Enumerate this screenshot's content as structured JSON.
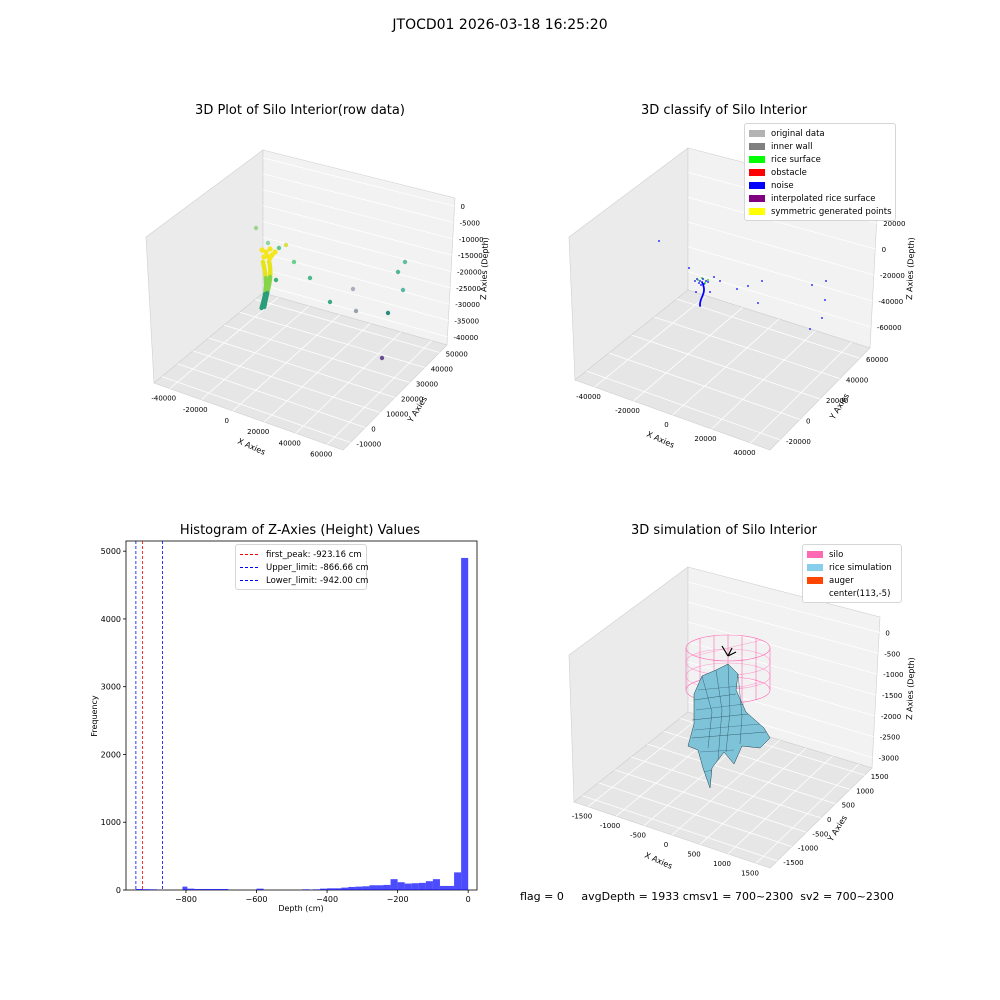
{
  "suptitle": "JTOCD01 2026-03-18 16:25:20",
  "footer": {
    "flag": "flag = 0",
    "avg": "avgDepth = 1933 cm",
    "sv1": "sv1 = 700~2300",
    "sv2": "sv2 = 700~2300"
  },
  "chart_data": [
    {
      "type": "scatter3d",
      "title": "3D Plot of Silo Interior(row data)",
      "xlabel": "X Axies",
      "ylabel": "Y Axies",
      "zlabel": "Z Axies (Depth)",
      "x_ticks": [
        "-40000",
        "-20000",
        "0",
        "20000",
        "40000",
        "60000"
      ],
      "y_ticks": [
        "-10000",
        "0",
        "10000",
        "20000",
        "30000",
        "40000",
        "50000"
      ],
      "z_ticks": [
        "0",
        "-5000",
        "-10000",
        "-15000",
        "-20000",
        "-25000",
        "-30000",
        "-35000",
        "-40000"
      ],
      "colormap": "viridis"
    },
    {
      "type": "scatter3d",
      "title": "3D classify of Silo Interior",
      "xlabel": "X Axies",
      "ylabel": "Y Axies",
      "zlabel": "Z Axies (Depth)",
      "x_ticks": [
        "-40000",
        "-20000",
        "0",
        "20000",
        "40000"
      ],
      "y_ticks": [
        "-20000",
        "0",
        "20000",
        "40000",
        "60000"
      ],
      "z_ticks": [
        "20000",
        "0",
        "-20000",
        "-40000",
        "-60000"
      ],
      "legend": [
        {
          "label": "original data",
          "color": "#b3b3b3"
        },
        {
          "label": "inner wall",
          "color": "#808080"
        },
        {
          "label": "rice surface",
          "color": "#00ff00"
        },
        {
          "label": "obstacle",
          "color": "#ff0000"
        },
        {
          "label": "noise",
          "color": "#0000ff"
        },
        {
          "label": "interpolated rice surface",
          "color": "#800080"
        },
        {
          "label": "symmetric generated points",
          "color": "#ffff00"
        }
      ]
    },
    {
      "type": "bar",
      "title": "Histogram of Z-Axies (Height) Values",
      "xlabel": "Depth (cm)",
      "ylabel": "Frequency",
      "xlim": [
        -970,
        25
      ],
      "ylim": [
        0,
        5150
      ],
      "x_ticks": [
        -800,
        -600,
        -400,
        -200,
        0
      ],
      "y_ticks": [
        0,
        1000,
        2000,
        3000,
        4000,
        5000
      ],
      "bar_color": "#0000ff",
      "bins": [
        {
          "x0": -942,
          "x1": -922,
          "y": 15
        },
        {
          "x0": -922,
          "x1": -902,
          "y": 12
        },
        {
          "x0": -902,
          "x1": -882,
          "y": 10
        },
        {
          "x0": -810,
          "x1": -796,
          "y": 50
        },
        {
          "x0": -796,
          "x1": -776,
          "y": 20
        },
        {
          "x0": -776,
          "x1": -756,
          "y": 15
        },
        {
          "x0": -756,
          "x1": -680,
          "y": 15
        },
        {
          "x0": -600,
          "x1": -580,
          "y": 20
        },
        {
          "x0": -470,
          "x1": -450,
          "y": 10
        },
        {
          "x0": -440,
          "x1": -420,
          "y": 10
        },
        {
          "x0": -420,
          "x1": -400,
          "y": 20
        },
        {
          "x0": -400,
          "x1": -380,
          "y": 25
        },
        {
          "x0": -380,
          "x1": -360,
          "y": 25
        },
        {
          "x0": -360,
          "x1": -340,
          "y": 35
        },
        {
          "x0": -340,
          "x1": -320,
          "y": 45
        },
        {
          "x0": -320,
          "x1": -300,
          "y": 50
        },
        {
          "x0": -300,
          "x1": -280,
          "y": 55
        },
        {
          "x0": -280,
          "x1": -260,
          "y": 70
        },
        {
          "x0": -260,
          "x1": -240,
          "y": 70
        },
        {
          "x0": -240,
          "x1": -220,
          "y": 75
        },
        {
          "x0": -220,
          "x1": -200,
          "y": 160
        },
        {
          "x0": -200,
          "x1": -180,
          "y": 115
        },
        {
          "x0": -180,
          "x1": -160,
          "y": 95
        },
        {
          "x0": -160,
          "x1": -140,
          "y": 100
        },
        {
          "x0": -140,
          "x1": -120,
          "y": 105
        },
        {
          "x0": -120,
          "x1": -100,
          "y": 130
        },
        {
          "x0": -100,
          "x1": -80,
          "y": 160
        },
        {
          "x0": -80,
          "x1": -60,
          "y": 60
        },
        {
          "x0": -60,
          "x1": -40,
          "y": 60
        },
        {
          "x0": -40,
          "x1": -20,
          "y": 260
        },
        {
          "x0": -20,
          "x1": 0,
          "y": 4900
        }
      ],
      "lines": [
        {
          "label": "first_peak: -923.16 cm",
          "x": -923.16,
          "color": "#ff0000"
        },
        {
          "label": "Upper_limit: -866.66 cm",
          "x": -866.66,
          "color": "#0000ff"
        },
        {
          "label": "Lower_limit: -942.00 cm",
          "x": -942.0,
          "color": "#0000ff"
        }
      ]
    },
    {
      "type": "surface3d",
      "title": "3D simulation of Silo Interior",
      "xlabel": "X Axies",
      "ylabel": "Y Axies",
      "zlabel": "Z Axies (Depth)",
      "x_ticks": [
        "-1500",
        "-1000",
        "-500",
        "0",
        "500",
        "1000",
        "1500"
      ],
      "y_ticks": [
        "-1500",
        "-1000",
        "-500",
        "0",
        "500",
        "1000",
        "1500"
      ],
      "z_ticks": [
        "0",
        "-500",
        "-1000",
        "-1500",
        "-2000",
        "-2500",
        "-3000"
      ],
      "legend": [
        {
          "label": "silo",
          "color": "#ff69b4"
        },
        {
          "label": "rice simulation",
          "color": "#87ceeb"
        },
        {
          "label": "auger",
          "color": "#ff4500"
        },
        {
          "label": "center(113,-5)",
          "color": ""
        }
      ]
    }
  ]
}
